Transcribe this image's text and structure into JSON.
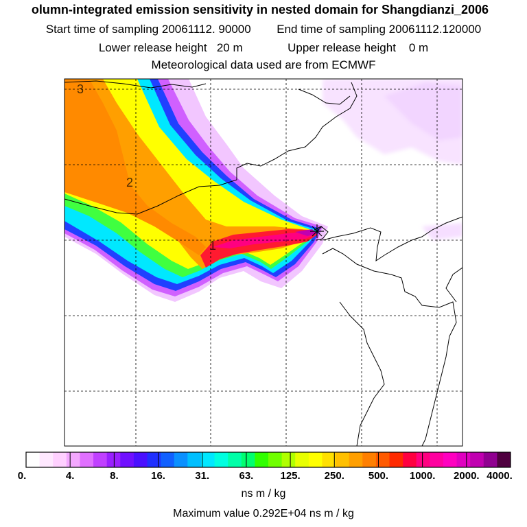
{
  "header": {
    "title": "olumn-integrated emission sensitivity in nested domain for Shangdianzi_2006",
    "start_label": "Start time of sampling",
    "start_value": "20061112. 90000",
    "end_label": "End time of sampling",
    "end_value": "20061112.120000",
    "lower_label": "Lower release height",
    "lower_value": "20 m",
    "upper_label": "Upper release height",
    "upper_value": "0 m",
    "met_line": "Meteorological data used are from ECMWF"
  },
  "map": {
    "contour_labels": [
      "3",
      "2",
      "1"
    ],
    "colors": {
      "frame": "#000000",
      "grid": "#000000",
      "coast": "#000000"
    }
  },
  "colorbar": {
    "tick_labels": [
      "0.",
      "4.",
      "8.",
      "16.",
      "31.",
      "63.",
      "125.",
      "250.",
      "500.",
      "1000.",
      "2000.",
      "4000."
    ],
    "colors": [
      "#ffffff",
      "#ffe8ff",
      "#ffd0ff",
      "#f4a8ff",
      "#e070ff",
      "#c040ff",
      "#9a20ff",
      "#7010ff",
      "#4a10ff",
      "#2030ff",
      "#1060ff",
      "#0a90ff",
      "#00bfff",
      "#00e8ff",
      "#00ffe0",
      "#00ffa8",
      "#00ff70",
      "#30ff00",
      "#70ff00",
      "#b0ff00",
      "#e8ff00",
      "#ffff00",
      "#ffe000",
      "#ffc000",
      "#ff9f00",
      "#ff7f00",
      "#ff5a00",
      "#ff2a00",
      "#ff0040",
      "#ff0080",
      "#ff00a0",
      "#ff00c0",
      "#e000c0",
      "#c000b0",
      "#900090",
      "#500040"
    ],
    "unit": "ns m / kg",
    "max_value_text": "Maximum value  0.292E+04 ns m / kg"
  }
}
